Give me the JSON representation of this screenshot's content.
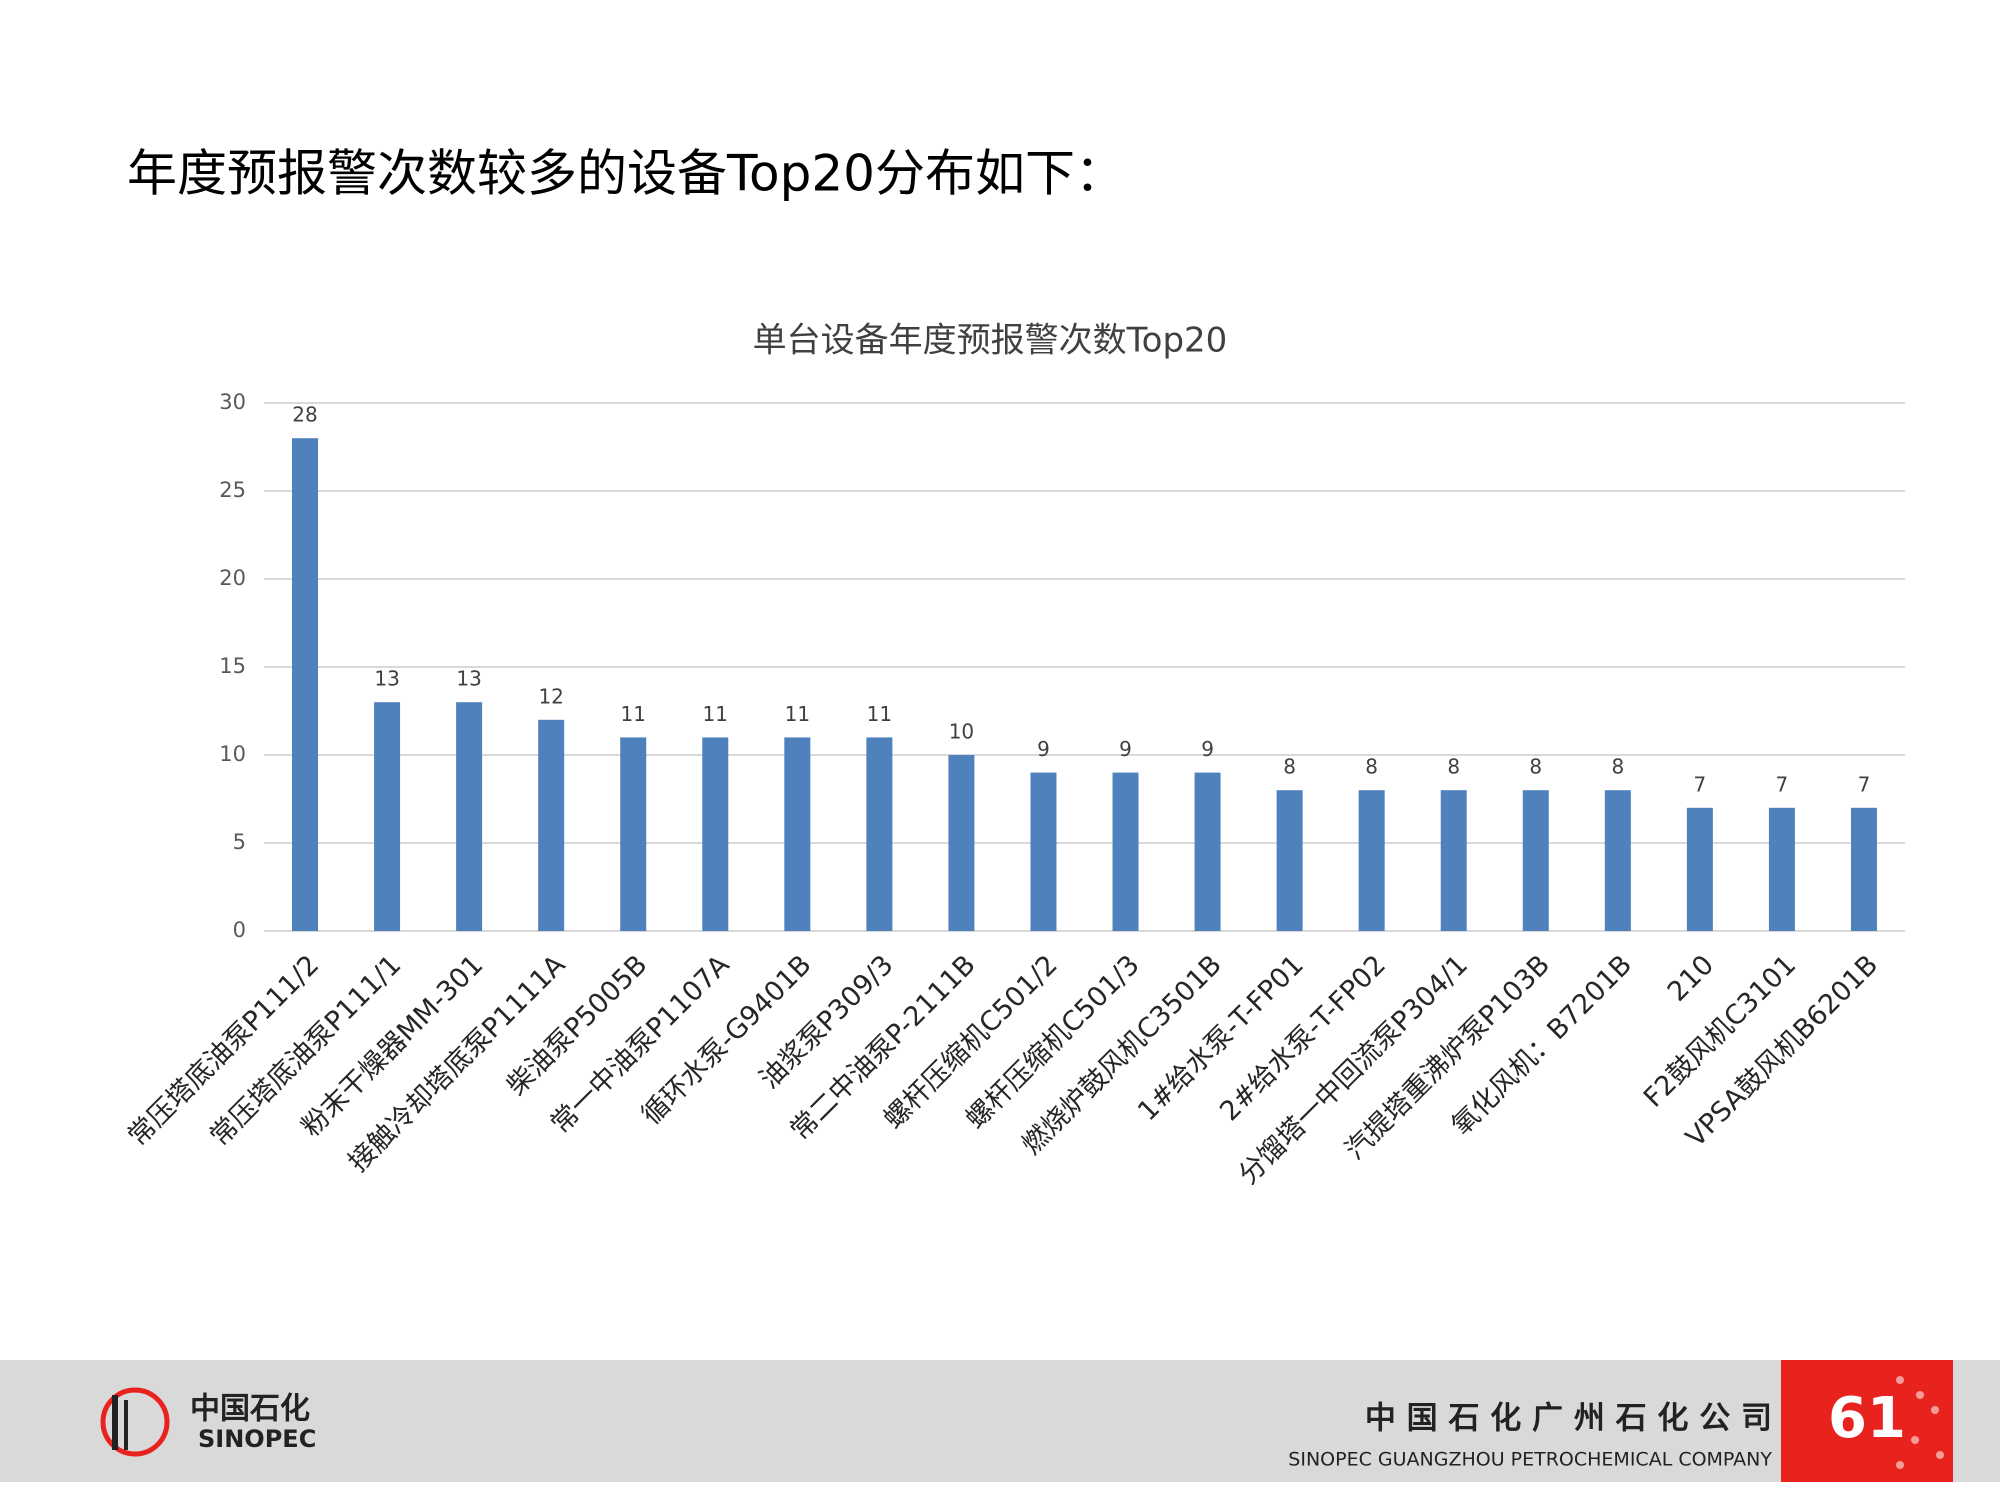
{
  "heading": "年度预报警次数较多的设备Top20分布如下：",
  "chart_data": {
    "type": "bar",
    "title": "单台设备年度预报警次数Top20",
    "categories": [
      "常压塔底油泵P111/2",
      "常压塔底油泵P111/1",
      "粉末干燥器MM-301",
      "接触冷却塔底泵P1111A",
      "柴油泵P5005B",
      "常一中油泵P1107A",
      "循环水泵-G9401B",
      "油浆泵P309/3",
      "常二中油泵P-2111B",
      "螺杆压缩机C501/2",
      "螺杆压缩机C501/3",
      "燃烧炉鼓风机C3501B",
      "1#给水泵-T-FP01",
      "2#给水泵-T-FP02",
      "分馏塔一中回流泵P304/1",
      "汽提塔重沸炉泵P103B",
      "氧化风机：B7201B",
      "210",
      "F2鼓风机C3101",
      "VPSA鼓风机B6201B"
    ],
    "values": [
      28,
      13,
      13,
      12,
      11,
      11,
      11,
      11,
      10,
      9,
      9,
      9,
      8,
      8,
      8,
      8,
      8,
      7,
      7,
      7
    ],
    "color": "#4f81bd",
    "ylim": [
      0,
      30
    ],
    "yticks": [
      0,
      5,
      10,
      15,
      20,
      25,
      30
    ],
    "grid": true
  },
  "footer": {
    "logo_cn": "中国石化",
    "logo_en": "SINOPEC",
    "company_cn": "中 国 石 化 广 州 石 化 公 司",
    "company_en": "SINOPEC GUANGZHOU PETROCHEMICAL COMPANY",
    "page_number": "61"
  }
}
